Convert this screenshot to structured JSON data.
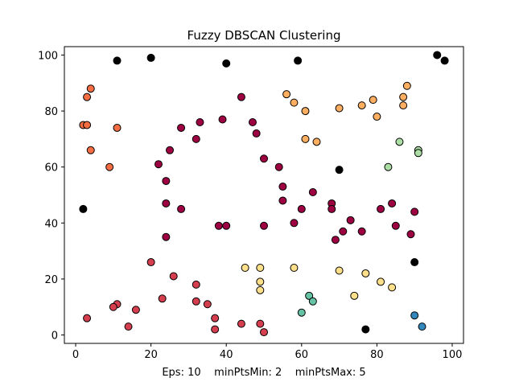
{
  "chart_data": {
    "type": "scatter",
    "title": "Fuzzy DBSCAN Clustering",
    "xlabel": "Eps: 10    minPtsMin: 2    minPtsMax: 5",
    "ylabel": "",
    "xlim": [
      -3,
      103
    ],
    "ylim": [
      -3,
      103
    ],
    "x_ticks": [
      0,
      20,
      40,
      60,
      80,
      100
    ],
    "y_ticks": [
      0,
      20,
      40,
      60,
      80,
      100
    ],
    "grid": false,
    "legend": "none",
    "series": [
      {
        "color": "#000000",
        "points": [
          {
            "x": 11,
            "y": 98
          },
          {
            "x": 20,
            "y": 99
          },
          {
            "x": 40,
            "y": 97
          },
          {
            "x": 59,
            "y": 98
          },
          {
            "x": 96,
            "y": 100
          },
          {
            "x": 98,
            "y": 98
          },
          {
            "x": 2,
            "y": 45
          },
          {
            "x": 70,
            "y": 59
          },
          {
            "x": 90,
            "y": 26
          },
          {
            "x": 77,
            "y": 2
          }
        ]
      },
      {
        "color": "#9e0142",
        "points": [
          {
            "x": 44,
            "y": 85
          },
          {
            "x": 28,
            "y": 74
          },
          {
            "x": 33,
            "y": 76
          },
          {
            "x": 39,
            "y": 77
          },
          {
            "x": 47,
            "y": 76
          },
          {
            "x": 48,
            "y": 72
          },
          {
            "x": 32,
            "y": 70
          },
          {
            "x": 25,
            "y": 66
          },
          {
            "x": 50,
            "y": 63
          },
          {
            "x": 22,
            "y": 61
          },
          {
            "x": 54,
            "y": 60
          },
          {
            "x": 24,
            "y": 55
          },
          {
            "x": 55,
            "y": 53
          },
          {
            "x": 63,
            "y": 51
          },
          {
            "x": 24,
            "y": 47
          },
          {
            "x": 55,
            "y": 48
          },
          {
            "x": 28,
            "y": 45
          },
          {
            "x": 60,
            "y": 45
          },
          {
            "x": 68,
            "y": 47
          },
          {
            "x": 68,
            "y": 45
          },
          {
            "x": 73,
            "y": 41
          },
          {
            "x": 84,
            "y": 47
          },
          {
            "x": 81,
            "y": 45
          },
          {
            "x": 90,
            "y": 44
          },
          {
            "x": 38,
            "y": 39
          },
          {
            "x": 40,
            "y": 39
          },
          {
            "x": 50,
            "y": 39
          },
          {
            "x": 58,
            "y": 40
          },
          {
            "x": 71,
            "y": 37
          },
          {
            "x": 76,
            "y": 37
          },
          {
            "x": 85,
            "y": 39
          },
          {
            "x": 24,
            "y": 35
          },
          {
            "x": 69,
            "y": 34
          },
          {
            "x": 89,
            "y": 36
          }
        ]
      },
      {
        "color": "#d53e4f",
        "points": [
          {
            "x": 20,
            "y": 26
          },
          {
            "x": 26,
            "y": 21
          },
          {
            "x": 23,
            "y": 13
          },
          {
            "x": 32,
            "y": 18
          },
          {
            "x": 32,
            "y": 12
          },
          {
            "x": 35,
            "y": 11
          },
          {
            "x": 11,
            "y": 11
          },
          {
            "x": 10,
            "y": 10
          },
          {
            "x": 16,
            "y": 9
          },
          {
            "x": 37,
            "y": 6
          },
          {
            "x": 3,
            "y": 6
          },
          {
            "x": 14,
            "y": 3
          },
          {
            "x": 37,
            "y": 2
          },
          {
            "x": 44,
            "y": 4
          },
          {
            "x": 49,
            "y": 4
          },
          {
            "x": 50,
            "y": 1
          }
        ]
      },
      {
        "color": "#f46d43",
        "points": [
          {
            "x": 4,
            "y": 88
          },
          {
            "x": 3,
            "y": 85
          },
          {
            "x": 2,
            "y": 75
          },
          {
            "x": 3,
            "y": 75
          },
          {
            "x": 11,
            "y": 74
          },
          {
            "x": 4,
            "y": 66
          },
          {
            "x": 9,
            "y": 60
          }
        ]
      },
      {
        "color": "#fdae61",
        "points": [
          {
            "x": 56,
            "y": 86
          },
          {
            "x": 58,
            "y": 83
          },
          {
            "x": 61,
            "y": 80
          },
          {
            "x": 70,
            "y": 81
          },
          {
            "x": 76,
            "y": 82
          },
          {
            "x": 79,
            "y": 84
          },
          {
            "x": 80,
            "y": 78
          },
          {
            "x": 88,
            "y": 89
          },
          {
            "x": 87,
            "y": 85
          },
          {
            "x": 87,
            "y": 82
          },
          {
            "x": 61,
            "y": 70
          },
          {
            "x": 64,
            "y": 69
          }
        ]
      },
      {
        "color": "#fee08b",
        "points": [
          {
            "x": 45,
            "y": 24
          },
          {
            "x": 49,
            "y": 24
          },
          {
            "x": 58,
            "y": 24
          },
          {
            "x": 49,
            "y": 19
          },
          {
            "x": 49,
            "y": 16
          },
          {
            "x": 70,
            "y": 23
          },
          {
            "x": 77,
            "y": 22
          },
          {
            "x": 81,
            "y": 19
          },
          {
            "x": 84,
            "y": 17
          },
          {
            "x": 74,
            "y": 14
          }
        ]
      },
      {
        "color": "#abdda4",
        "points": [
          {
            "x": 86,
            "y": 69
          },
          {
            "x": 83,
            "y": 60
          },
          {
            "x": 91,
            "y": 66
          },
          {
            "x": 91,
            "y": 65
          }
        ]
      },
      {
        "color": "#66c2a5",
        "points": [
          {
            "x": 62,
            "y": 14
          },
          {
            "x": 63,
            "y": 12
          },
          {
            "x": 60,
            "y": 8
          }
        ]
      },
      {
        "color": "#3288bd",
        "points": [
          {
            "x": 90,
            "y": 7
          },
          {
            "x": 92,
            "y": 3
          }
        ]
      }
    ]
  }
}
